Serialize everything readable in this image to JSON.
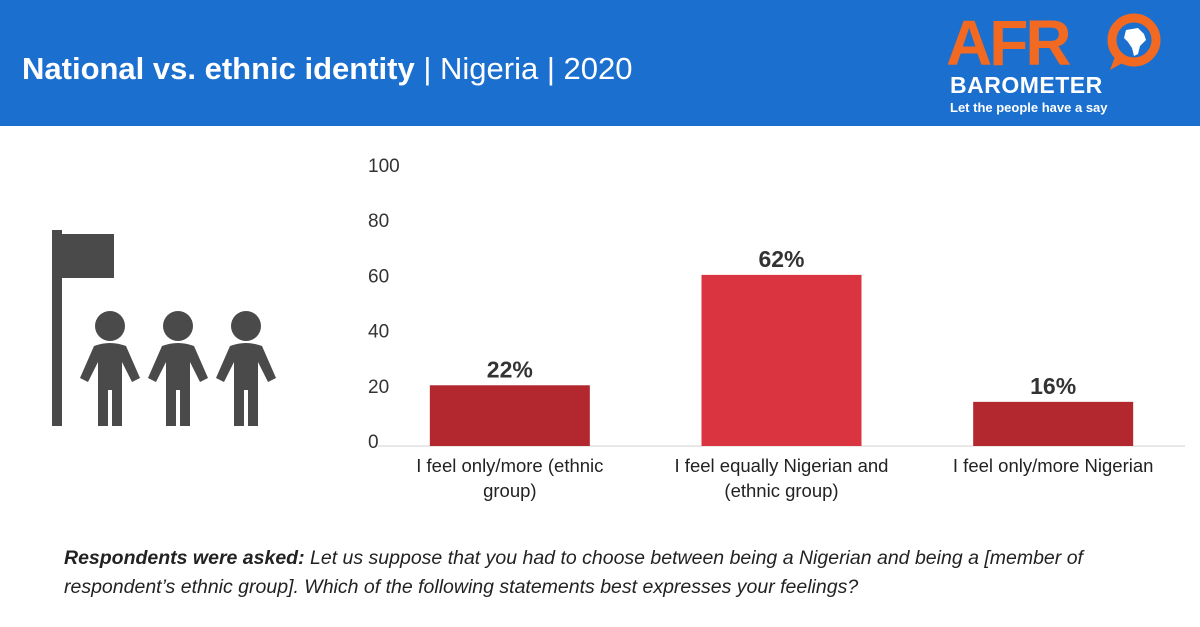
{
  "header": {
    "title_bold": "National vs. ethnic identity",
    "title_rest": " | Nigeria | 2020",
    "bg_color": "#1a6fcf"
  },
  "logo": {
    "word_top": "AFR",
    "word_bottom": "BAROMETER",
    "tagline": "Let the people have a say",
    "accent_color": "#f26a21"
  },
  "icon": {
    "name": "people-with-flag-icon",
    "color": "#4a4a4a"
  },
  "chart_data": {
    "type": "bar",
    "categories": [
      [
        "I feel only/more (ethnic",
        "group)"
      ],
      [
        "I feel equally Nigerian and",
        "(ethnic group)"
      ],
      [
        "I feel only/more Nigerian"
      ]
    ],
    "values": [
      22,
      62,
      16
    ],
    "data_labels": [
      "22%",
      "62%",
      "16%"
    ],
    "colors": [
      "#b3282e",
      "#d93440",
      "#b3282e"
    ],
    "yticks": [
      0,
      20,
      40,
      60,
      80,
      100
    ],
    "ylim": [
      0,
      100
    ],
    "grid": false
  },
  "footnote": {
    "lead": "Respondents were asked:",
    "text": " Let us suppose that you had to choose between being a Nigerian and being a [member of respondent’s ethnic group]. Which of the following statements best expresses your feelings?"
  }
}
